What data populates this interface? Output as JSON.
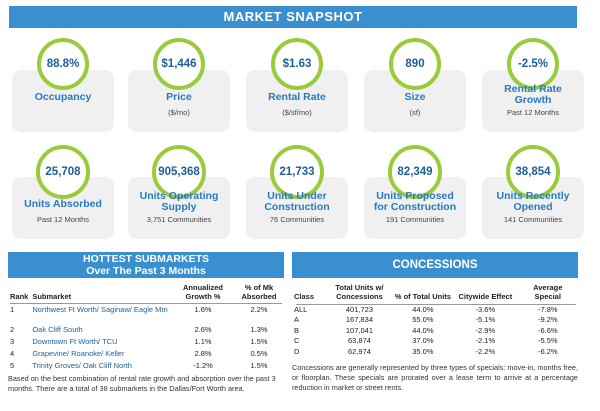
{
  "title": "MARKET SNAPSHOT",
  "kpis": [
    {
      "value": "88.8%",
      "label": "Occupancy",
      "sub": ""
    },
    {
      "value": "$1,446",
      "label": "Price",
      "sub": "($/mo)"
    },
    {
      "value": "$1.63",
      "label": "Rental Rate",
      "sub": "($/sf/mo)"
    },
    {
      "value": "890",
      "label": "Size",
      "sub": "(sf)"
    },
    {
      "value": "-2.5%",
      "label": "Rental Rate Growth",
      "sub": "Past 12 Months"
    },
    {
      "value": "25,708",
      "label": "Units Absorbed",
      "sub": "Past 12 Months"
    },
    {
      "value": "905,368",
      "label": "Units Operating Supply",
      "sub": "3,751 Communities"
    },
    {
      "value": "21,733",
      "label": "Units Under Construction",
      "sub": "76 Communities"
    },
    {
      "value": "82,349",
      "label": "Units Proposed for Construction",
      "sub": "191 Communities"
    },
    {
      "value": "38,854",
      "label": "Units Recently Opened",
      "sub": "141 Communities"
    }
  ],
  "submarkets": {
    "title_line1": "HOTTEST SUBMARKETS",
    "title_line2": "Over The Past 3 Months",
    "headers": {
      "rank": "Rank",
      "submarket": "Submarket",
      "growth": "Annualized Growth %",
      "absorbed": "% of Mk Absorbed"
    },
    "rows": [
      {
        "rank": "1",
        "name": "Northwest Ft Worth/ Saginaw/ Eagle Mtn",
        "growth": "1.6%",
        "absorbed": "2.2%"
      },
      {
        "rank": "2",
        "name": "Oak Cliff South",
        "growth": "2.6%",
        "absorbed": "1.3%"
      },
      {
        "rank": "3",
        "name": "Downtown Ft Worth/ TCU",
        "growth": "1.1%",
        "absorbed": "1.5%"
      },
      {
        "rank": "4",
        "name": "Grapevine/ Roanoke/ Keller",
        "growth": "2.8%",
        "absorbed": "0.5%"
      },
      {
        "rank": "5",
        "name": "Trinity Groves/ Oak Cliff North",
        "growth": "-1.2%",
        "absorbed": "1.5%"
      }
    ],
    "note": "Based on the best combination of rental rate growth and absorption over the past 3 months. There are a total of 38 submarkets in the Dallas/Fort Worth area."
  },
  "concessions": {
    "title": "CONCESSIONS",
    "headers": {
      "class": "Class",
      "total": "Total Units w/ Concessions",
      "pct": "% of Total Units",
      "effect": "Citywide Effect",
      "special": "Average Special"
    },
    "rows": [
      {
        "class": "ALL",
        "total": "401,723",
        "pct": "44.0%",
        "effect": "-3.6%",
        "special": "-7.8%"
      },
      {
        "class": "A",
        "total": "167,834",
        "pct": "55.0%",
        "effect": "-5.1%",
        "special": "-9.2%"
      },
      {
        "class": "B",
        "total": "107,041",
        "pct": "44.0%",
        "effect": "-2.9%",
        "special": "-6.6%"
      },
      {
        "class": "C",
        "total": "63,874",
        "pct": "37.0%",
        "effect": "-2.1%",
        "special": "-5.5%"
      },
      {
        "class": "D",
        "total": "62,974",
        "pct": "35.0%",
        "effect": "-2.2%",
        "special": "-6.2%"
      }
    ],
    "note": "Concessions are generally represented by three types of specials: move-in, months free, or floorplan. These specials are prorated over a lease term to arrive at a percentage reduction in market or street rents."
  },
  "colors": {
    "accent": "#3a8fd0",
    "ring": "#9acb3c",
    "value": "#1f5f99",
    "label": "#2879c0"
  }
}
